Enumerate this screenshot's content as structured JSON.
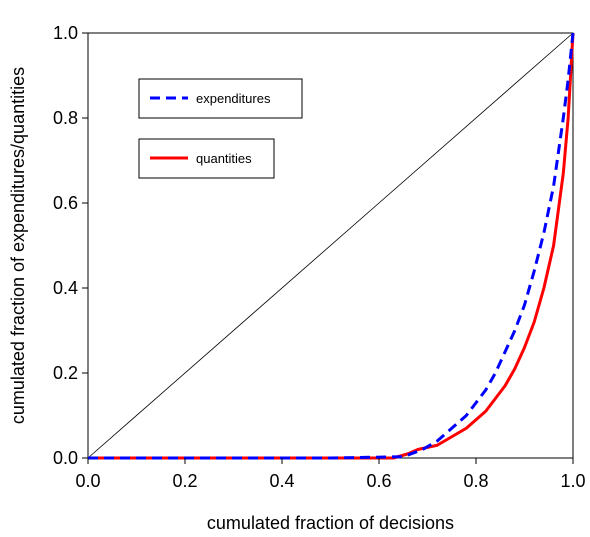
{
  "chart_data": {
    "type": "line",
    "title": "",
    "xlabel": "cumulated fraction of decisions",
    "ylabel": "cumulated fraction of expenditures/quantities",
    "xlim": [
      0.0,
      1.0
    ],
    "ylim": [
      0.0,
      1.0
    ],
    "x_ticks": [
      "0.0",
      "0.2",
      "0.4",
      "0.6",
      "0.8",
      "1.0"
    ],
    "y_ticks": [
      "0.0",
      "0.2",
      "0.4",
      "0.6",
      "0.8",
      "1.0"
    ],
    "grid": false,
    "legend_placement": "top-left",
    "reference_line": {
      "x": [
        0.0,
        1.0
      ],
      "y": [
        0.0,
        1.0
      ],
      "color": "#000000"
    },
    "series": [
      {
        "name": "expenditures",
        "style": "dashed",
        "color": "#0000ff",
        "x": [
          0.0,
          0.5,
          0.65,
          0.69,
          0.72,
          0.75,
          0.78,
          0.8,
          0.82,
          0.84,
          0.86,
          0.88,
          0.9,
          0.92,
          0.94,
          0.96,
          0.98,
          0.99,
          1.0
        ],
        "y": [
          0.0,
          0.0,
          0.003,
          0.02,
          0.04,
          0.07,
          0.1,
          0.13,
          0.16,
          0.2,
          0.25,
          0.3,
          0.36,
          0.44,
          0.53,
          0.64,
          0.8,
          0.89,
          1.0
        ]
      },
      {
        "name": "quantities",
        "style": "solid",
        "color": "#ff0000",
        "x": [
          0.0,
          0.5,
          0.63,
          0.66,
          0.68,
          0.72,
          0.75,
          0.78,
          0.8,
          0.82,
          0.84,
          0.86,
          0.88,
          0.9,
          0.92,
          0.94,
          0.96,
          0.98,
          0.99,
          1.0
        ],
        "y": [
          0.0,
          0.0,
          0.0,
          0.01,
          0.02,
          0.03,
          0.05,
          0.07,
          0.09,
          0.11,
          0.14,
          0.17,
          0.21,
          0.26,
          0.32,
          0.4,
          0.5,
          0.67,
          0.8,
          1.0
        ]
      }
    ]
  }
}
